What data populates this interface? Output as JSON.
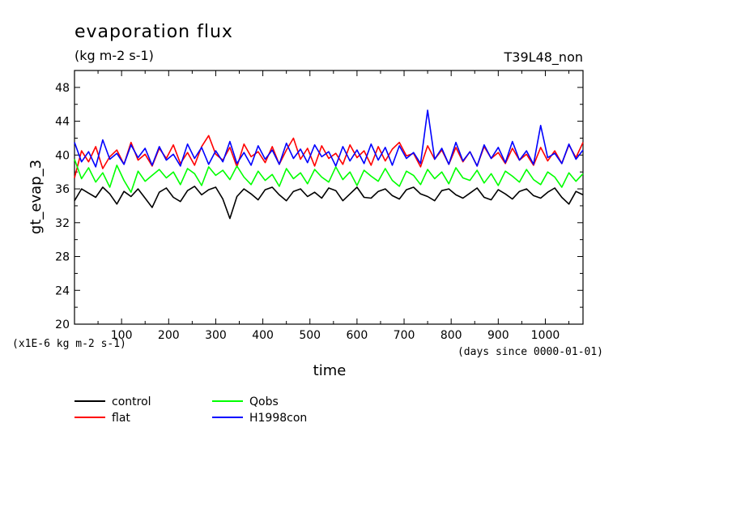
{
  "chart_data": {
    "type": "line",
    "title": "evaporation flux",
    "subtitle": "(kg m-2 s-1)",
    "run_label": "T39L48_non",
    "xlabel": "time",
    "ylabel": "gt_evap_3",
    "y_scale_note": "(x1E-6 kg m-2 s-1)",
    "x_units_note": "(days since 0000-01-01)",
    "xlim": [
      0,
      1080
    ],
    "ylim": [
      20,
      50
    ],
    "x_ticks": [
      100,
      200,
      300,
      400,
      500,
      600,
      700,
      800,
      900,
      1000
    ],
    "y_ticks": [
      20,
      24,
      28,
      32,
      36,
      40,
      44,
      48
    ],
    "grid": false,
    "legend_position": "bottom-left",
    "x": [
      0,
      15,
      30,
      45,
      60,
      75,
      90,
      105,
      120,
      135,
      150,
      165,
      180,
      195,
      210,
      225,
      240,
      255,
      270,
      285,
      300,
      315,
      330,
      345,
      360,
      375,
      390,
      405,
      420,
      435,
      450,
      465,
      480,
      495,
      510,
      525,
      540,
      555,
      570,
      585,
      600,
      615,
      630,
      645,
      660,
      675,
      690,
      705,
      720,
      735,
      750,
      765,
      780,
      795,
      810,
      825,
      840,
      855,
      870,
      885,
      900,
      915,
      930,
      945,
      960,
      975,
      990,
      1005,
      1020,
      1035,
      1050,
      1065,
      1080
    ],
    "series": [
      {
        "name": "control",
        "color": "#000000",
        "values": [
          34.6,
          36.0,
          35.5,
          35.0,
          36.2,
          35.4,
          34.2,
          35.7,
          35.1,
          36.0,
          34.9,
          33.8,
          35.6,
          36.1,
          35.0,
          34.5,
          35.8,
          36.3,
          35.3,
          35.9,
          36.2,
          34.8,
          32.5,
          35.1,
          36.0,
          35.4,
          34.7,
          35.9,
          36.2,
          35.3,
          34.6,
          35.7,
          36.0,
          35.1,
          35.6,
          34.9,
          36.1,
          35.8,
          34.6,
          35.4,
          36.2,
          35.0,
          34.9,
          35.7,
          36.0,
          35.2,
          34.8,
          35.9,
          36.2,
          35.4,
          35.1,
          34.6,
          35.8,
          36.0,
          35.3,
          34.9,
          35.5,
          36.1,
          35.0,
          34.7,
          35.9,
          35.4,
          34.8,
          35.7,
          36.0,
          35.2,
          34.9,
          35.6,
          36.1,
          35.0,
          34.2,
          35.7,
          35.3
        ]
      },
      {
        "name": "flat",
        "color": "#ff0000",
        "values": [
          37.3,
          40.5,
          39.2,
          41.0,
          38.4,
          39.8,
          40.6,
          38.9,
          41.5,
          39.4,
          40.1,
          38.7,
          40.8,
          39.6,
          41.2,
          39.0,
          40.3,
          38.8,
          41.0,
          42.3,
          40.1,
          39.4,
          40.9,
          38.6,
          41.3,
          39.8,
          40.4,
          39.1,
          41.0,
          38.9,
          40.6,
          42.0,
          39.5,
          40.8,
          38.7,
          41.1,
          39.6,
          40.2,
          38.9,
          41.2,
          39.7,
          40.5,
          38.8,
          41.0,
          39.3,
          40.7,
          41.5,
          39.9,
          40.2,
          38.6,
          41.1,
          39.5,
          40.6,
          38.9,
          40.9,
          39.2,
          40.4,
          38.7,
          41.0,
          39.6,
          40.3,
          39.0,
          40.8,
          39.4,
          40.1,
          38.8,
          40.9,
          39.3,
          40.5,
          39.0,
          41.2,
          39.7,
          41.5
        ]
      },
      {
        "name": "Qobs",
        "color": "#00ff00",
        "values": [
          39.5,
          37.2,
          38.5,
          36.8,
          37.9,
          36.2,
          38.8,
          37.0,
          35.6,
          38.1,
          36.9,
          37.6,
          38.3,
          37.3,
          38.0,
          36.5,
          38.4,
          37.8,
          36.4,
          38.6,
          37.6,
          38.2,
          37.1,
          38.7,
          37.4,
          36.5,
          38.1,
          37.0,
          37.7,
          36.3,
          38.4,
          37.2,
          37.9,
          36.6,
          38.3,
          37.4,
          36.8,
          38.6,
          37.1,
          38.0,
          36.4,
          38.2,
          37.5,
          36.9,
          38.4,
          37.0,
          36.3,
          38.1,
          37.6,
          36.5,
          38.3,
          37.2,
          38.0,
          36.6,
          38.5,
          37.3,
          37.0,
          38.2,
          36.7,
          37.8,
          36.4,
          38.1,
          37.5,
          36.8,
          38.3,
          37.1,
          36.5,
          38.0,
          37.4,
          36.2,
          37.9,
          36.9,
          37.8
        ]
      },
      {
        "name": "H1998con",
        "color": "#0000ff",
        "values": [
          41.5,
          39.2,
          40.4,
          38.6,
          41.8,
          39.5,
          40.2,
          38.9,
          41.2,
          39.7,
          40.8,
          38.8,
          41.0,
          39.4,
          40.1,
          38.7,
          41.3,
          39.6,
          40.9,
          38.9,
          40.5,
          39.2,
          41.6,
          39.0,
          40.3,
          38.8,
          41.1,
          39.5,
          40.6,
          38.9,
          41.4,
          39.6,
          40.7,
          39.1,
          41.2,
          39.8,
          40.4,
          38.7,
          41.0,
          39.3,
          40.6,
          39.0,
          41.3,
          39.4,
          40.9,
          38.8,
          41.1,
          39.6,
          40.3,
          39.0,
          45.3,
          39.5,
          40.8,
          38.9,
          41.5,
          39.3,
          40.4,
          38.7,
          41.2,
          39.6,
          40.9,
          39.1,
          41.6,
          39.4,
          40.5,
          38.9,
          43.5,
          39.7,
          40.2,
          39.0,
          41.3,
          39.5,
          40.6
        ]
      }
    ]
  }
}
